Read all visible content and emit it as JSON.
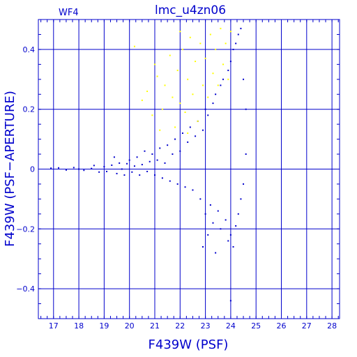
{
  "chart_data": {
    "type": "scatter",
    "title": "lmc_u4zn06",
    "subtitle": "WF4",
    "xlabel": "F439W (PSF)",
    "ylabel": "F439W (PSF−APERTURE)",
    "xlim": [
      16.4,
      28.3
    ],
    "ylim": [
      -0.5,
      0.5
    ],
    "x_ticks": [
      17,
      18,
      19,
      20,
      21,
      22,
      23,
      24,
      25,
      26,
      27,
      28
    ],
    "y_ticks": [
      -0.4,
      -0.2,
      0,
      0.2,
      0.4
    ],
    "y_tick_labels": [
      "−0.4",
      "−0.2",
      "0",
      "0.2",
      "0.4"
    ],
    "grid": true,
    "series": [
      {
        "color": "#0000cc",
        "points": [
          [
            16.9,
            0.003
          ],
          [
            17.2,
            0.004
          ],
          [
            17.5,
            -0.003
          ],
          [
            17.8,
            0.005
          ],
          [
            18.0,
            0.0
          ],
          [
            18.2,
            -0.004
          ],
          [
            18.5,
            0.002
          ],
          [
            18.6,
            0.012
          ],
          [
            18.8,
            -0.01
          ],
          [
            19.0,
            0.008
          ],
          [
            19.1,
            -0.008
          ],
          [
            19.3,
            0.013
          ],
          [
            19.4,
            0.04
          ],
          [
            19.5,
            -0.015
          ],
          [
            19.6,
            0.02
          ],
          [
            19.7,
            0.0
          ],
          [
            19.8,
            -0.02
          ],
          [
            19.9,
            0.018
          ],
          [
            20.0,
            0.03
          ],
          [
            20.1,
            -0.01
          ],
          [
            20.2,
            0.01
          ],
          [
            20.3,
            0.04
          ],
          [
            20.4,
            -0.02
          ],
          [
            20.5,
            0.015
          ],
          [
            20.6,
            0.06
          ],
          [
            20.7,
            -0.008
          ],
          [
            20.8,
            0.025
          ],
          [
            20.9,
            0.05
          ],
          [
            21.0,
            -0.02
          ],
          [
            21.1,
            0.03
          ],
          [
            21.2,
            0.07
          ],
          [
            21.3,
            -0.03
          ],
          [
            21.4,
            0.02
          ],
          [
            21.5,
            0.08
          ],
          [
            21.6,
            -0.04
          ],
          [
            21.7,
            0.05
          ],
          [
            21.8,
            0.1
          ],
          [
            21.9,
            -0.05
          ],
          [
            22.0,
            0.06
          ],
          [
            22.1,
            0.12
          ],
          [
            22.2,
            -0.06
          ],
          [
            22.3,
            0.09
          ],
          [
            22.4,
            0.14
          ],
          [
            22.5,
            -0.07
          ],
          [
            22.6,
            0.11
          ],
          [
            22.7,
            0.16
          ],
          [
            22.8,
            -0.1
          ],
          [
            22.9,
            0.13
          ],
          [
            23.0,
            0.2
          ],
          [
            23.0,
            -0.15
          ],
          [
            23.1,
            0.18
          ],
          [
            23.2,
            -0.12
          ],
          [
            23.3,
            0.22
          ],
          [
            23.3,
            -0.18
          ],
          [
            23.4,
            0.25
          ],
          [
            23.5,
            -0.14
          ],
          [
            23.6,
            0.28
          ],
          [
            23.6,
            -0.2
          ],
          [
            23.7,
            0.3
          ],
          [
            23.8,
            -0.17
          ],
          [
            23.9,
            0.33
          ],
          [
            23.9,
            -0.24
          ],
          [
            24.0,
            0.36
          ],
          [
            24.0,
            -0.22
          ],
          [
            24.1,
            0.4
          ],
          [
            24.1,
            -0.26
          ],
          [
            24.2,
            0.42
          ],
          [
            24.2,
            -0.19
          ],
          [
            24.3,
            0.45
          ],
          [
            24.3,
            -0.15
          ],
          [
            24.4,
            0.47
          ],
          [
            24.4,
            -0.1
          ],
          [
            24.5,
            0.3
          ],
          [
            24.5,
            -0.05
          ],
          [
            24.6,
            0.2
          ],
          [
            24.6,
            0.05
          ],
          [
            24.0,
            -0.44
          ],
          [
            23.1,
            -0.22
          ],
          [
            22.9,
            -0.26
          ],
          [
            23.4,
            -0.28
          ]
        ]
      },
      {
        "color": "#ffff00",
        "points": [
          [
            20.2,
            0.41
          ],
          [
            20.5,
            0.23
          ],
          [
            20.7,
            0.26
          ],
          [
            21.0,
            0.35
          ],
          [
            21.1,
            0.31
          ],
          [
            21.3,
            0.2
          ],
          [
            21.4,
            0.28
          ],
          [
            21.6,
            0.38
          ],
          [
            21.7,
            0.24
          ],
          [
            21.8,
            0.14
          ],
          [
            21.9,
            0.33
          ],
          [
            22.0,
            0.22
          ],
          [
            22.1,
            0.4
          ],
          [
            22.2,
            0.19
          ],
          [
            22.3,
            0.3
          ],
          [
            22.4,
            0.44
          ],
          [
            22.5,
            0.25
          ],
          [
            22.6,
            0.36
          ],
          [
            22.7,
            0.16
          ],
          [
            22.8,
            0.42
          ],
          [
            22.9,
            0.28
          ],
          [
            23.0,
            0.37
          ],
          [
            23.1,
            0.24
          ],
          [
            23.2,
            0.45
          ],
          [
            23.3,
            0.32
          ],
          [
            23.4,
            0.4
          ],
          [
            23.5,
            0.28
          ],
          [
            23.6,
            0.47
          ],
          [
            23.7,
            0.35
          ],
          [
            23.8,
            0.42
          ],
          [
            23.9,
            0.3
          ],
          [
            24.0,
            0.46
          ],
          [
            21.2,
            0.13
          ],
          [
            20.9,
            0.18
          ],
          [
            22.0,
            0.46
          ],
          [
            22.3,
            0.12
          ]
        ]
      }
    ]
  }
}
